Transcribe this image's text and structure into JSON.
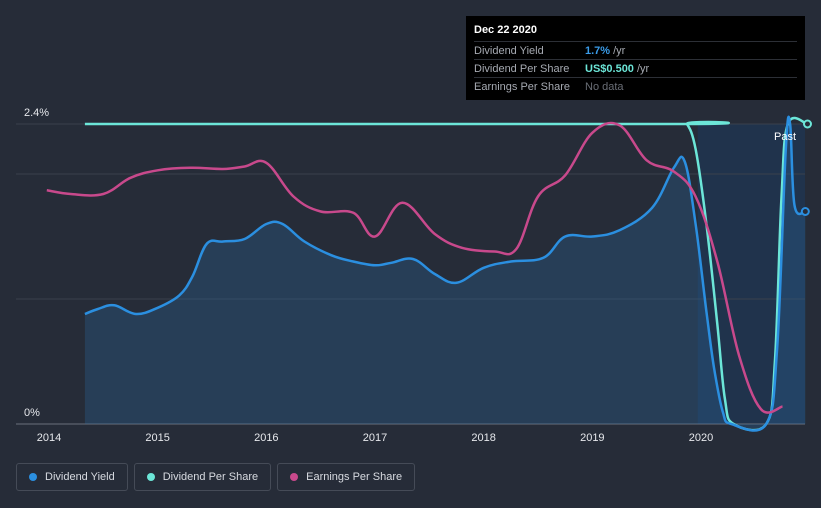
{
  "colors": {
    "background": "#262c38",
    "dividend_yield": "#2b8fe0",
    "dividend_per_share": "#6ce6d8",
    "earnings_per_share": "#c8498c",
    "past_shade": "#1b3a5c"
  },
  "tooltip": {
    "date": "Dec 22 2020",
    "rows": [
      {
        "name": "Dividend Yield",
        "value": "1.7%",
        "unit": "/yr",
        "color": "#3a9be8"
      },
      {
        "name": "Dividend Per Share",
        "value": "US$0.500",
        "unit": "/yr",
        "color": "#6ce6d8"
      },
      {
        "name": "Earnings Per Share",
        "value": "No data",
        "unit": "",
        "color": "#6a6e76"
      }
    ]
  },
  "legend": [
    {
      "label": "Dividend Yield",
      "color": "#2b8fe0"
    },
    {
      "label": "Dividend Per Share",
      "color": "#6ce6d8"
    },
    {
      "label": "Earnings Per Share",
      "color": "#c8498c"
    }
  ],
  "chart_data": {
    "type": "line",
    "ylabel_top": "2.4%",
    "ylabel_bottom": "0%",
    "ylim": [
      0,
      2.4
    ],
    "xlim": [
      2013.9,
      2020.98
    ],
    "x_ticks": [
      "2014",
      "2015",
      "2016",
      "2017",
      "2018",
      "2019",
      "2020"
    ],
    "past_label": "Past",
    "past_start": 2019.97,
    "grid": "horizontal",
    "series": [
      {
        "name": "Dividend Yield",
        "points": [
          [
            2014.33,
            0.88
          ],
          [
            2014.45,
            0.92
          ],
          [
            2014.6,
            0.95
          ],
          [
            2014.8,
            0.88
          ],
          [
            2015.0,
            0.93
          ],
          [
            2015.2,
            1.03
          ],
          [
            2015.32,
            1.18
          ],
          [
            2015.45,
            1.44
          ],
          [
            2015.6,
            1.46
          ],
          [
            2015.8,
            1.48
          ],
          [
            2016.0,
            1.6
          ],
          [
            2016.15,
            1.6
          ],
          [
            2016.35,
            1.46
          ],
          [
            2016.6,
            1.35
          ],
          [
            2016.8,
            1.3
          ],
          [
            2017.0,
            1.27
          ],
          [
            2017.15,
            1.29
          ],
          [
            2017.35,
            1.32
          ],
          [
            2017.55,
            1.2
          ],
          [
            2017.75,
            1.13
          ],
          [
            2018.0,
            1.25
          ],
          [
            2018.25,
            1.3
          ],
          [
            2018.55,
            1.33
          ],
          [
            2018.75,
            1.5
          ],
          [
            2019.0,
            1.5
          ],
          [
            2019.25,
            1.55
          ],
          [
            2019.55,
            1.73
          ],
          [
            2019.75,
            2.05
          ],
          [
            2019.85,
            2.1
          ],
          [
            2019.95,
            1.6
          ],
          [
            2020.05,
            0.9
          ],
          [
            2020.12,
            0.45
          ],
          [
            2020.2,
            0.1
          ],
          [
            2020.28,
            0.0
          ],
          [
            2020.6,
            0.0
          ],
          [
            2020.7,
            0.6
          ],
          [
            2020.78,
            2.2
          ],
          [
            2020.82,
            2.4
          ],
          [
            2020.86,
            1.75
          ],
          [
            2020.96,
            1.7
          ]
        ]
      },
      {
        "name": "Dividend Per Share",
        "points": [
          [
            2014.33,
            2.4
          ],
          [
            2019.8,
            2.4
          ],
          [
            2019.87,
            2.4
          ],
          [
            2019.95,
            2.2
          ],
          [
            2020.05,
            1.6
          ],
          [
            2020.15,
            0.8
          ],
          [
            2020.22,
            0.2
          ],
          [
            2020.3,
            0.0
          ],
          [
            2020.6,
            0.0
          ],
          [
            2020.68,
            0.5
          ],
          [
            2020.74,
            1.8
          ],
          [
            2020.8,
            2.4
          ],
          [
            2020.98,
            2.4
          ]
        ]
      },
      {
        "name": "Earnings Per Share",
        "points": [
          [
            2013.98,
            1.87
          ],
          [
            2014.2,
            1.84
          ],
          [
            2014.5,
            1.84
          ],
          [
            2014.75,
            1.97
          ],
          [
            2015.0,
            2.03
          ],
          [
            2015.3,
            2.05
          ],
          [
            2015.6,
            2.04
          ],
          [
            2015.8,
            2.06
          ],
          [
            2016.0,
            2.09
          ],
          [
            2016.25,
            1.82
          ],
          [
            2016.5,
            1.7
          ],
          [
            2016.8,
            1.69
          ],
          [
            2017.0,
            1.5
          ],
          [
            2017.25,
            1.77
          ],
          [
            2017.55,
            1.52
          ],
          [
            2017.8,
            1.41
          ],
          [
            2018.1,
            1.38
          ],
          [
            2018.3,
            1.4
          ],
          [
            2018.5,
            1.82
          ],
          [
            2018.75,
            1.99
          ],
          [
            2019.0,
            2.33
          ],
          [
            2019.25,
            2.39
          ],
          [
            2019.5,
            2.11
          ],
          [
            2019.75,
            2.02
          ],
          [
            2019.95,
            1.82
          ],
          [
            2020.15,
            1.3
          ],
          [
            2020.35,
            0.55
          ],
          [
            2020.55,
            0.12
          ],
          [
            2020.75,
            0.14
          ]
        ]
      }
    ]
  }
}
